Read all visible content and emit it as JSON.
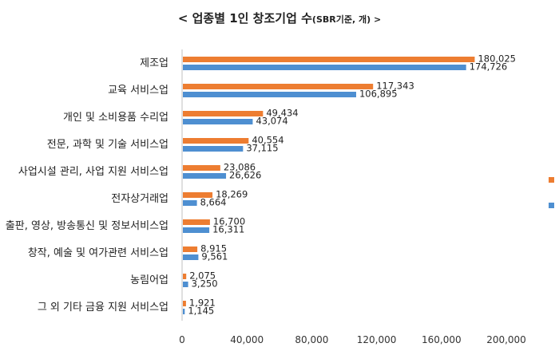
{
  "chart_data": {
    "type": "bar",
    "orientation": "horizontal",
    "title": "< 업종별 1인 창조기업 수",
    "title_unit": "(SBR기준, 개) >",
    "categories": [
      "제조업",
      "교육 서비스업",
      "개인 및 소비용품 수리업",
      "전문, 과학 및 기술 서비스업",
      "사업시설 관리, 사업 지원 서비스업",
      "전자상거래업",
      "출판, 영상, 방송통신 및 정보서비스업",
      "창작, 예술 및 여가관련 서비스업",
      "농림어업",
      "그 외 기타 금융 지원 서비스업"
    ],
    "series": [
      {
        "name": "",
        "color": "#ED7D31",
        "values": [
          180025,
          117343,
          49434,
          40554,
          23086,
          18269,
          16700,
          8915,
          2075,
          1921
        ],
        "labels": [
          "180,025",
          "117,343",
          "49,434",
          "40,554",
          "23,086",
          "18,269",
          "16,700",
          "8,915",
          "2,075",
          "1,921"
        ]
      },
      {
        "name": "",
        "color": "#4E8FD1",
        "values": [
          174726,
          106895,
          43074,
          37115,
          26626,
          8664,
          16311,
          9561,
          3250,
          1145
        ],
        "labels": [
          "174,726",
          "106,895",
          "43,074",
          "37,115",
          "26,626",
          "8,664",
          "16,311",
          "9,561",
          "3,250",
          "1,145"
        ]
      }
    ],
    "xlim": [
      0,
      200000
    ],
    "xticks": [
      0,
      40000,
      80000,
      120000,
      160000,
      200000
    ],
    "xtick_labels": [
      "0",
      "40,000",
      "80,000",
      "120,000",
      "160,000",
      "200,000"
    ],
    "grid": false,
    "legend_position": "right"
  }
}
